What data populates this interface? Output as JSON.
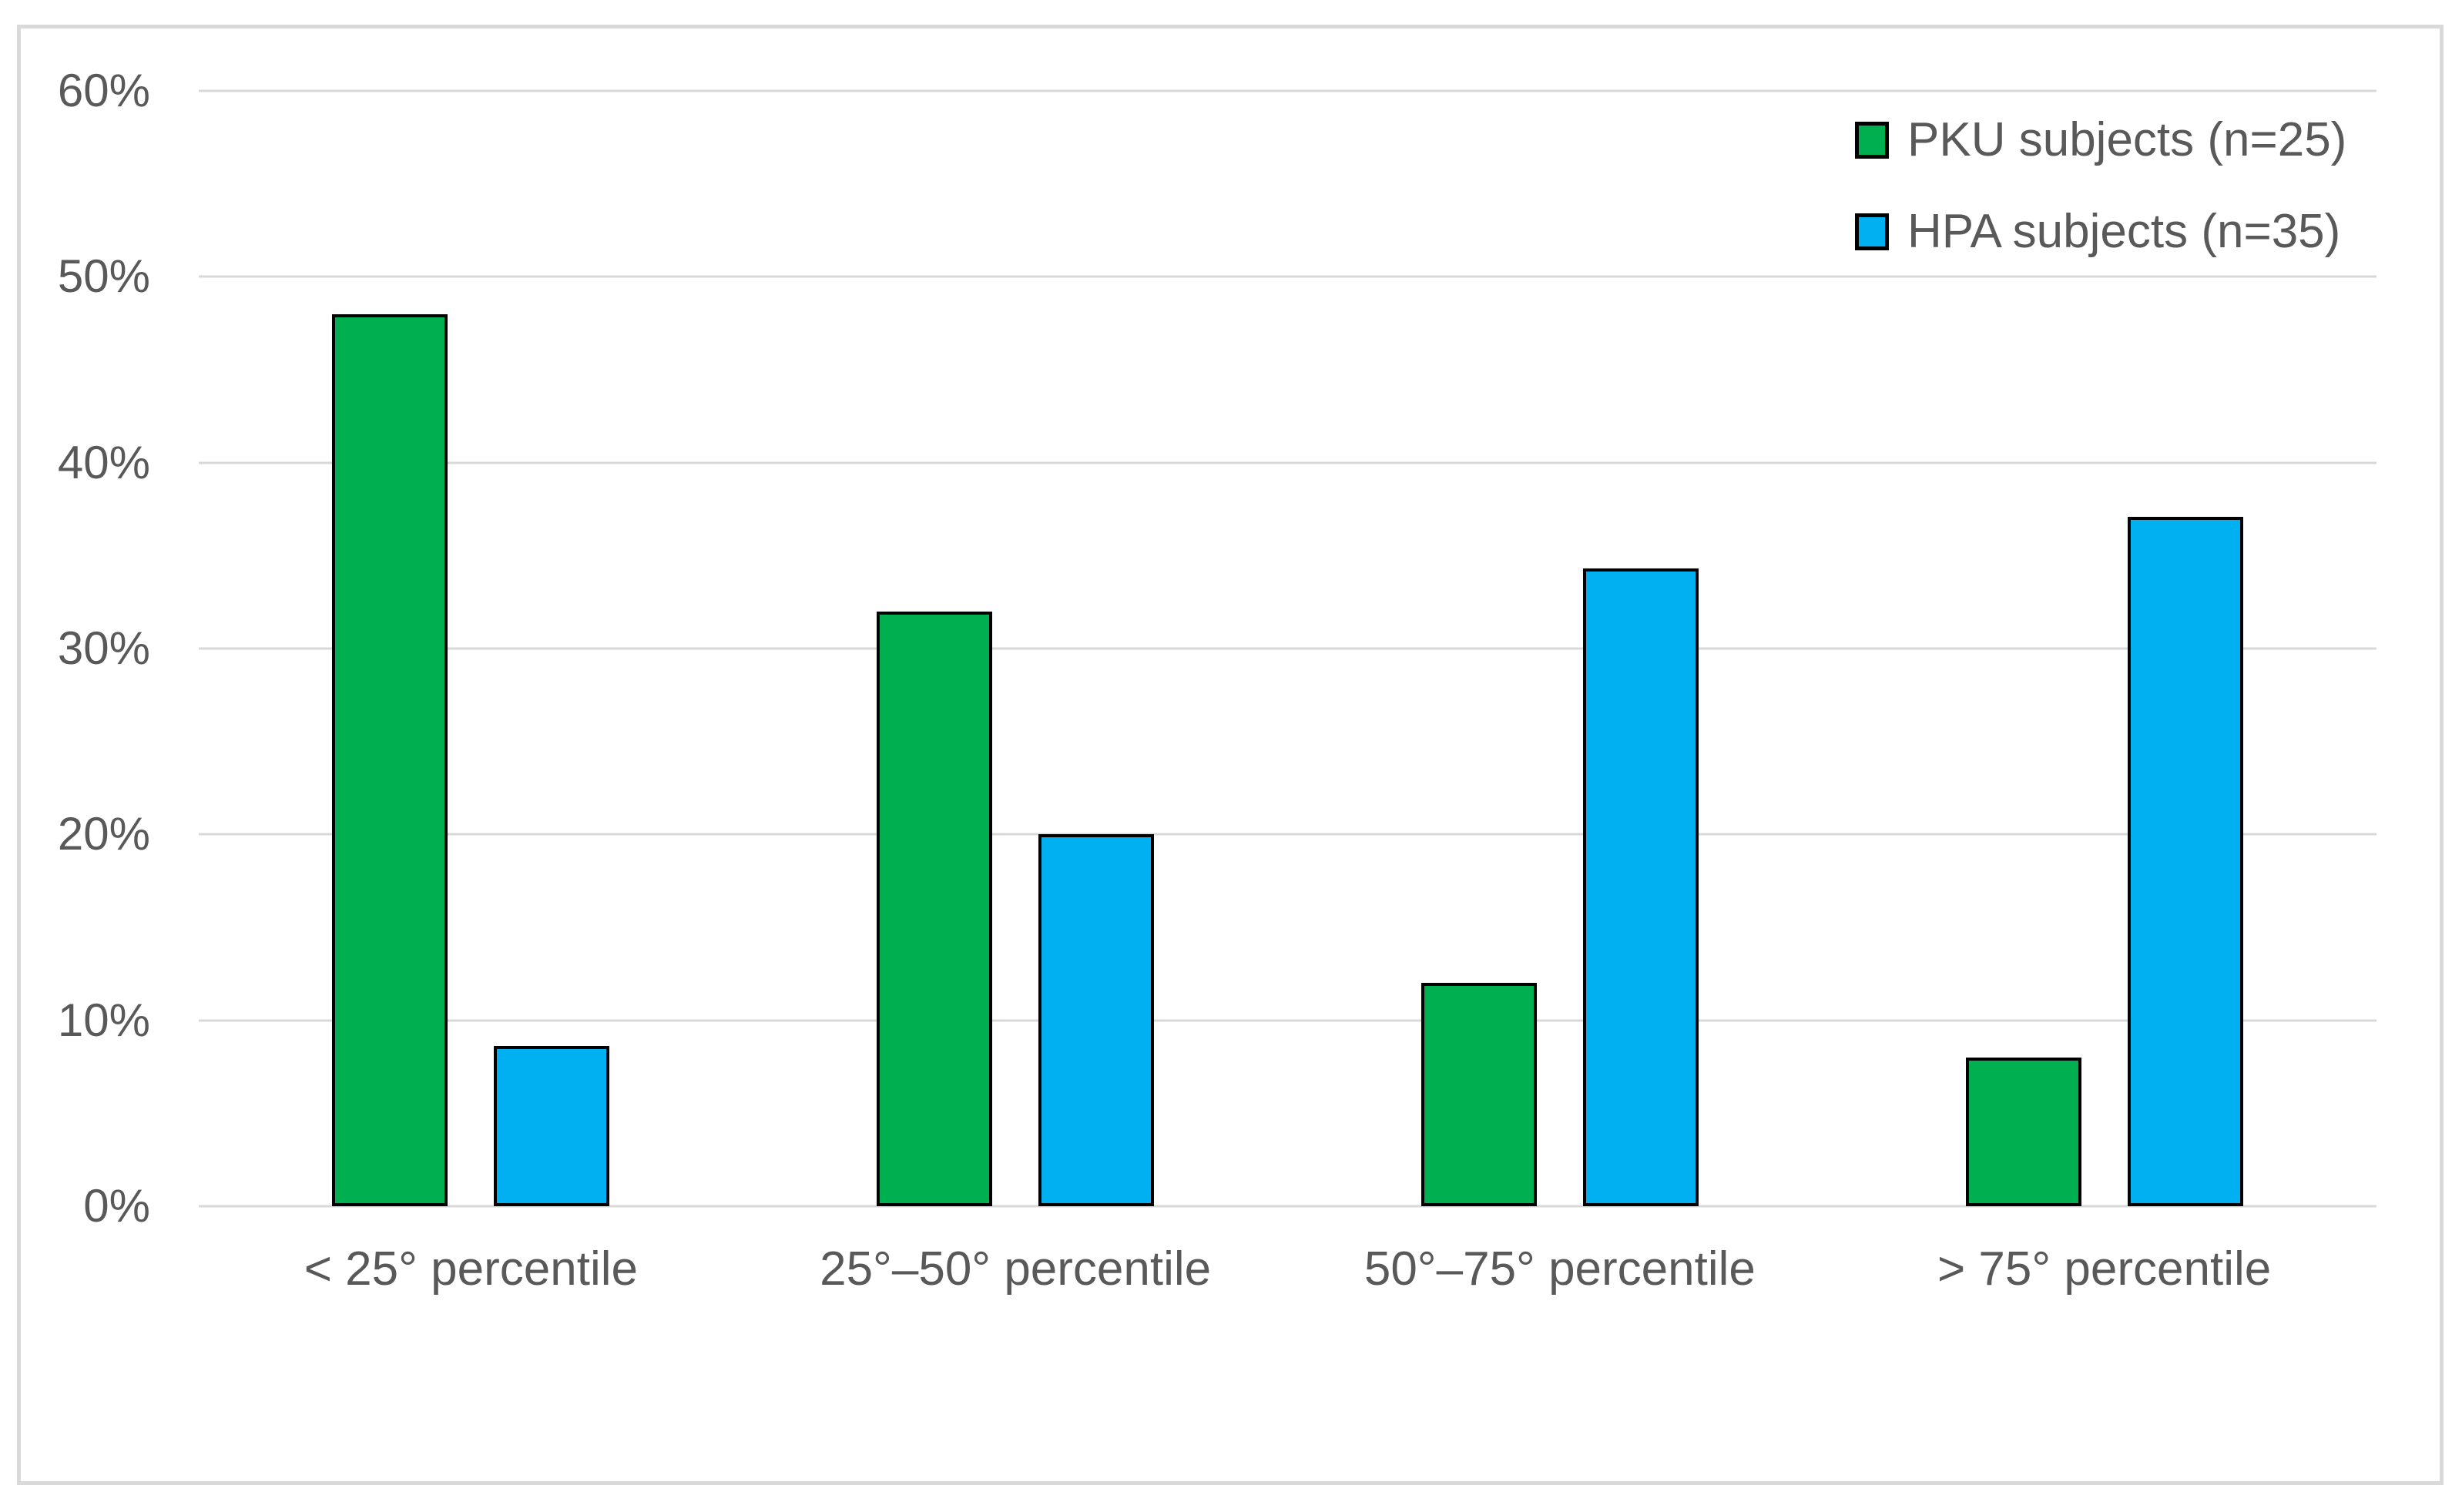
{
  "figure": {
    "background_color": "#ffffff",
    "frame_border_color": "#d9d9d9"
  },
  "chart_data": {
    "type": "bar",
    "categories": [
      "< 25° percentile",
      "25°–50° percentile",
      "50°–75° percentile",
      "> 75° percentile"
    ],
    "series": [
      {
        "name": "PKU subjects (n=25)",
        "color": "#00B050",
        "values": [
          48,
          32,
          12,
          8
        ]
      },
      {
        "name": "HPA subjects (n=35)",
        "color": "#00B0F0",
        "values": [
          8.6,
          20,
          34.3,
          37.1
        ]
      }
    ],
    "ylim": [
      0,
      60
    ],
    "ytick_values": [
      0,
      10,
      20,
      30,
      40,
      50,
      60
    ],
    "ytick_labels": [
      "0%",
      "10%",
      "20%",
      "30%",
      "40%",
      "50%",
      "60%"
    ],
    "grid": "horizontal",
    "gridline_color": "#d9d9d9",
    "axis_text_color": "#595959",
    "bar_border_color": "#000000",
    "legend_position": "top-right"
  }
}
